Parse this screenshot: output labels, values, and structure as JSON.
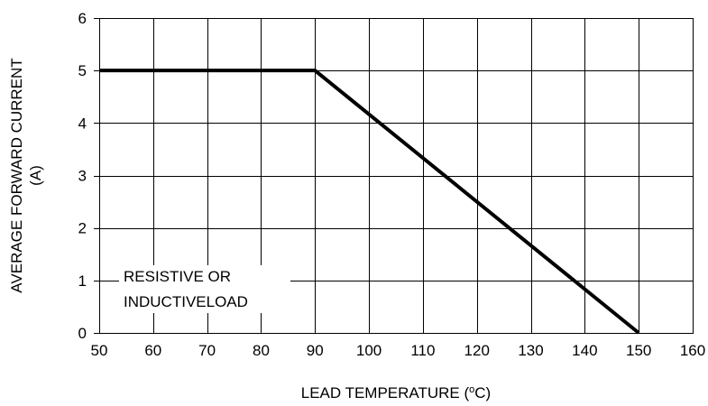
{
  "chart_data": {
    "type": "line",
    "xlabel_prefix": "LEAD TEMPERATURE (",
    "xlabel_sup": "o",
    "xlabel_suffix": "C)",
    "ylabel_line1": "AVERAGE FORWARD CURRENT",
    "ylabel_line2": "(A)",
    "xlim": [
      50,
      160
    ],
    "ylim": [
      0,
      6
    ],
    "x_ticks": [
      50,
      60,
      70,
      80,
      90,
      100,
      110,
      120,
      130,
      140,
      150,
      160
    ],
    "y_ticks": [
      0,
      1,
      2,
      3,
      4,
      5,
      6
    ],
    "grid": true,
    "series": [
      {
        "x": [
          50,
          90,
          150
        ],
        "y": [
          5,
          5,
          0
        ]
      }
    ],
    "annotation": {
      "line1": "RESISTIVE OR",
      "line2": "INDUCTIVELOAD"
    }
  }
}
